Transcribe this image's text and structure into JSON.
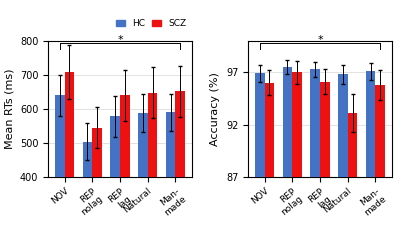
{
  "chart_data": [
    {
      "type": "bar",
      "categories": [
        "NOV",
        "REP\nnolag",
        "REP\nlag",
        "Natural",
        "Man-\nmade"
      ],
      "series": [
        {
          "name": "HC",
          "color": "#4472C4",
          "values": [
            640,
            503,
            578,
            588,
            590
          ],
          "errors": [
            60,
            55,
            60,
            55,
            55
          ]
        },
        {
          "name": "SCZ",
          "color": "#EE1111",
          "values": [
            710,
            545,
            640,
            648,
            652
          ],
          "errors": [
            80,
            60,
            75,
            75,
            75
          ]
        }
      ],
      "y_label": "Mean RTs (ms)",
      "ylim": [
        400,
        800
      ],
      "yticks": [
        400,
        500,
        600,
        700,
        800
      ],
      "grid": true,
      "legend": "upper right",
      "annotations": [
        "*"
      ]
    },
    {
      "type": "bar",
      "categories": [
        "NOV",
        "REP\nnolag",
        "REP\nlag",
        "Natural",
        "Man-\nmade"
      ],
      "series": [
        {
          "name": "HC",
          "color": "#4472C4",
          "values": [
            96.9,
            97.5,
            97.3,
            96.8,
            97.1
          ],
          "errors": [
            0.8,
            0.7,
            0.7,
            0.9,
            0.8
          ]
        },
        {
          "name": "SCZ",
          "color": "#EE1111",
          "values": [
            96.0,
            97.0,
            96.1,
            93.1,
            95.8
          ],
          "errors": [
            1.2,
            1.1,
            1.2,
            1.8,
            1.4
          ]
        }
      ],
      "y_label": "Accuracy (%)",
      "ylim": [
        87,
        100
      ],
      "yticks": [
        87,
        92,
        97
      ],
      "grid": true,
      "annotations": [
        "*"
      ]
    }
  ]
}
